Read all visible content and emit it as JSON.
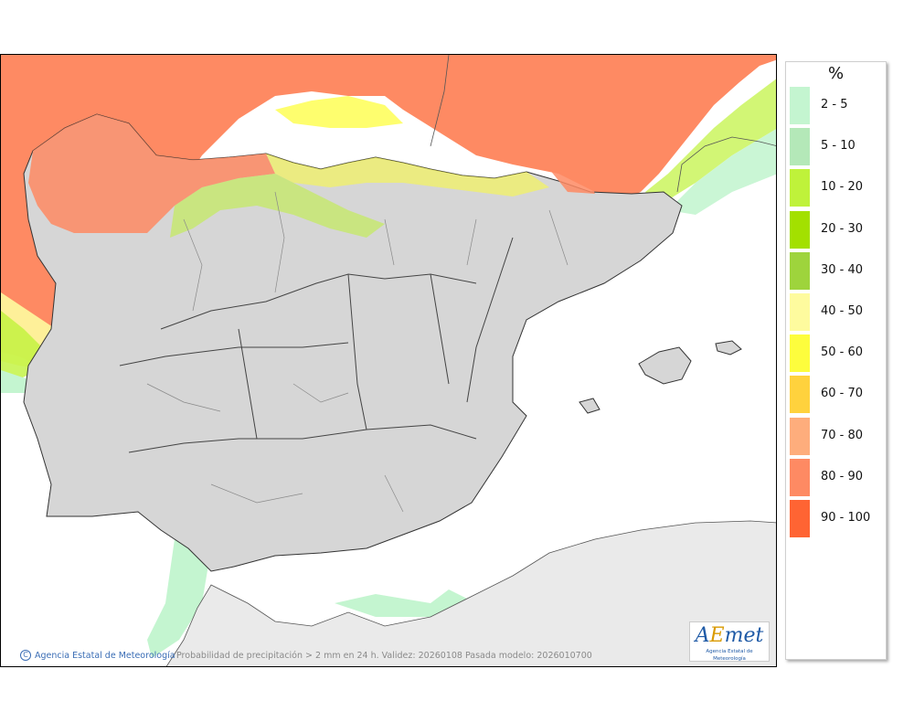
{
  "legend": {
    "title": "%",
    "items": [
      {
        "label": "2 - 5",
        "color": "#c4f5d0"
      },
      {
        "label": "5 - 10",
        "color": "#b4e8b8"
      },
      {
        "label": "10 - 20",
        "color": "#bff23a"
      },
      {
        "label": "20 - 30",
        "color": "#a3e000"
      },
      {
        "label": "30 - 40",
        "color": "#9ed43c"
      },
      {
        "label": "40 - 50",
        "color": "#fefb9e"
      },
      {
        "label": "50 - 60",
        "color": "#fdfd3d"
      },
      {
        "label": "60 - 70",
        "color": "#ffd23d"
      },
      {
        "label": "70 - 80",
        "color": "#fead7c"
      },
      {
        "label": "80 - 90",
        "color": "#fe8a63"
      },
      {
        "label": "90 - 100",
        "color": "#ff6433"
      }
    ]
  },
  "footer": {
    "credit": "Agencia Estatal de Meteorología",
    "caption": "Probabilidad de precipitación > 2 mm en 24 h. Validez: 20260108 Pasada modelo: 2026010700"
  },
  "logo": {
    "wordmark_a": "A",
    "wordmark_e": "E",
    "wordmark_rest": "met",
    "subtitle": "Agencia Estatal de Meteorología"
  }
}
